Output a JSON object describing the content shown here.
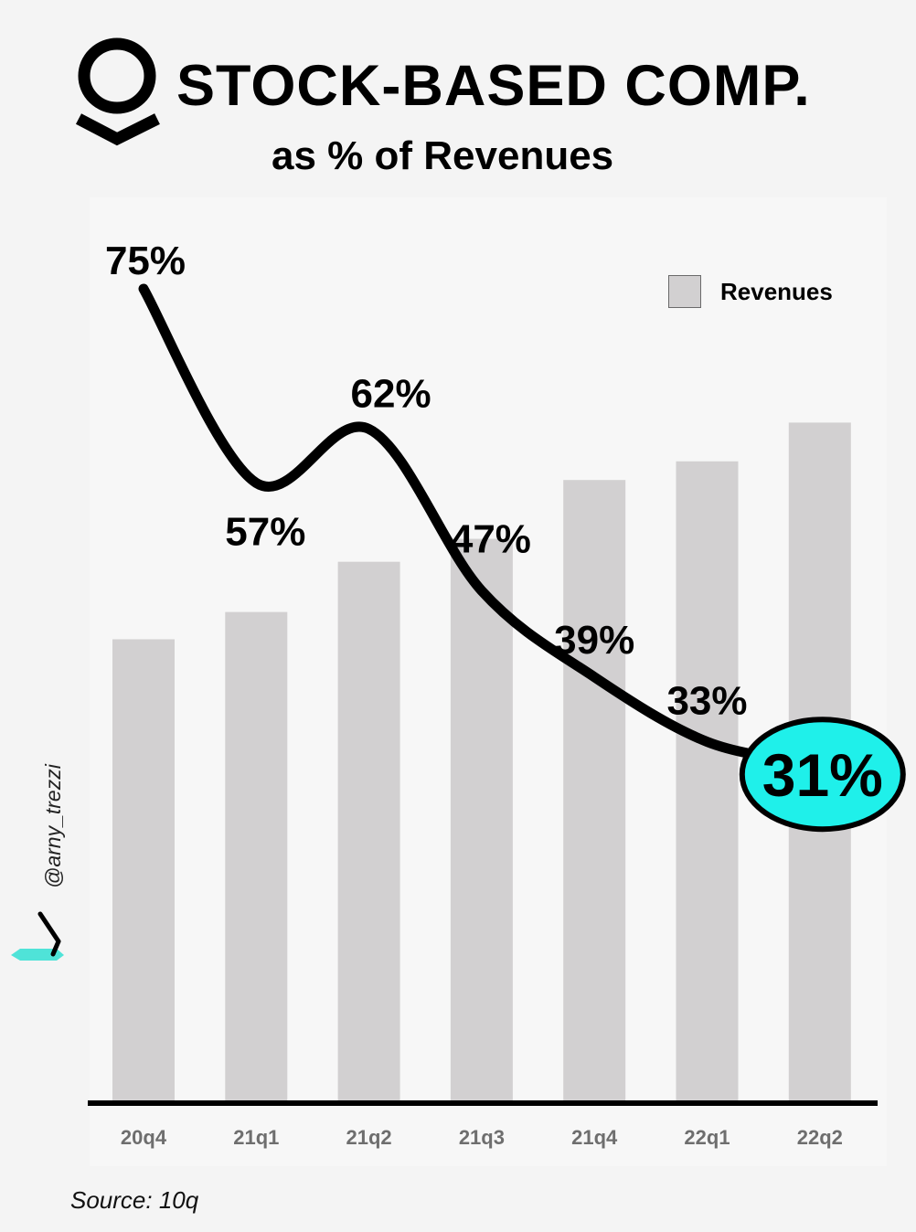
{
  "header": {
    "title": "STOCK-BASED COMP.",
    "subtitle": "as % of Revenues"
  },
  "legend": {
    "label": "Revenues"
  },
  "watermark": {
    "handle": "@arny_trezzi"
  },
  "footer": {
    "source": "Source: 10q"
  },
  "colors": {
    "bar": "#d2d0d1",
    "line": "#000000",
    "highlight": "#1ff0ea",
    "accent": "#4fe3d8"
  },
  "chart_data": {
    "type": "bar",
    "title": "STOCK-BASED COMP. as % of Revenues",
    "categories": [
      "20q4",
      "21q1",
      "21q2",
      "21q3",
      "21q4",
      "22q1",
      "22q2"
    ],
    "series": [
      {
        "name": "Revenues",
        "type": "bar",
        "values": [
          322,
          341,
          376,
          392,
          433,
          446,
          473
        ]
      },
      {
        "name": "Stock-based comp. as % of revenues",
        "type": "line",
        "values": [
          75,
          57,
          62,
          47,
          39,
          33,
          31
        ],
        "labels": [
          "75%",
          "57%",
          "62%",
          "47%",
          "39%",
          "33%",
          "31%"
        ]
      }
    ],
    "highlight": {
      "category": "22q2",
      "label": "31%"
    },
    "xlabel": "",
    "ylabel": "",
    "grid": false,
    "legend_position": "top-right"
  }
}
